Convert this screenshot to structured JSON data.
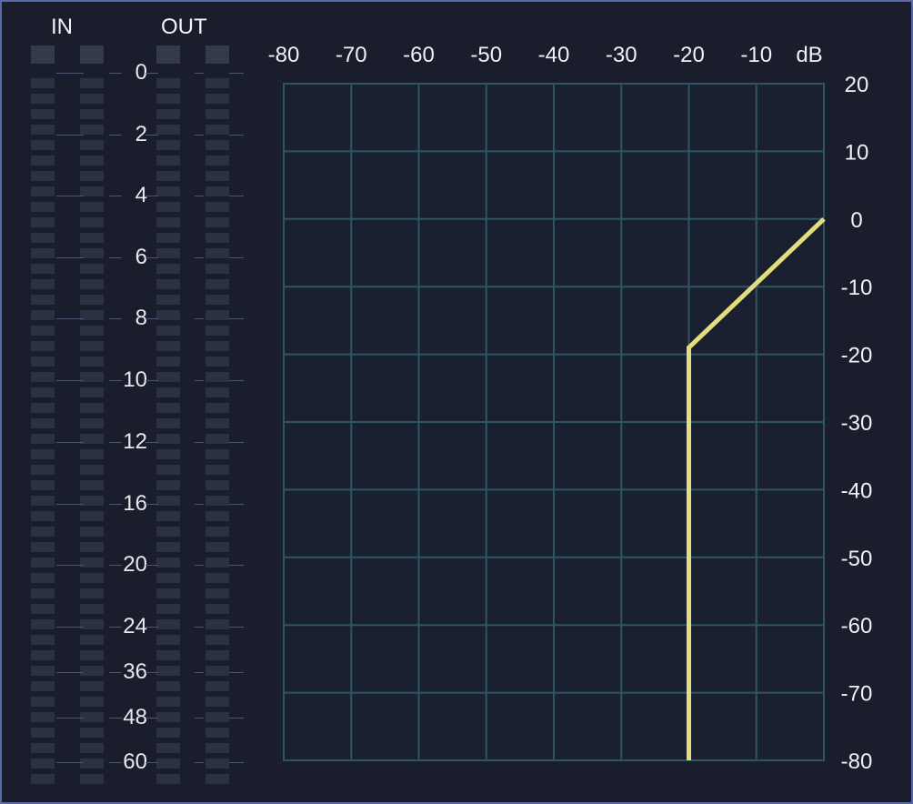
{
  "meters": {
    "in_label": "IN",
    "out_label": "OUT",
    "scale": [
      "0",
      "2",
      "4",
      "6",
      "8",
      "10",
      "12",
      "16",
      "20",
      "24",
      "36",
      "48",
      "60"
    ]
  },
  "graph": {
    "x_ticks": [
      "-80",
      "-70",
      "-60",
      "-50",
      "-40",
      "-30",
      "-20",
      "-10"
    ],
    "x_unit": "dB",
    "y_ticks": [
      "20",
      "10",
      "0",
      "-10",
      "-20",
      "-30",
      "-40",
      "-50",
      "-60",
      "-70",
      "-80"
    ],
    "curve_color": "#e3de7c",
    "grid_color": "#2e5563",
    "curve_input_db": [
      -20,
      -20,
      0
    ],
    "curve_output_db": [
      -80,
      -19,
      0
    ]
  }
}
